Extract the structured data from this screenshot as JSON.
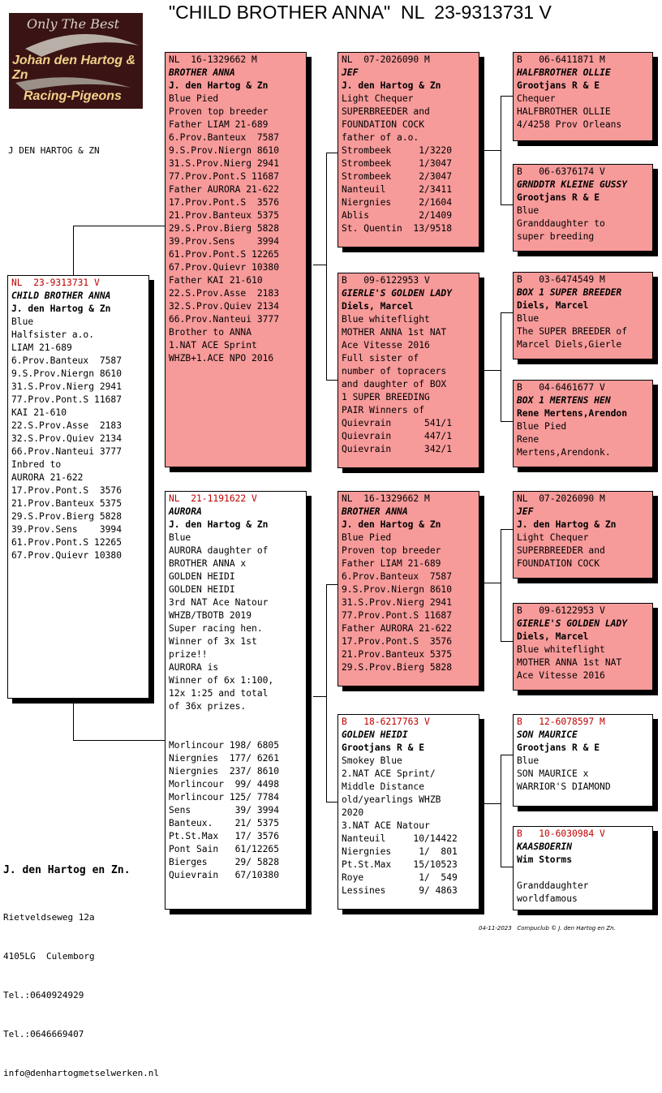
{
  "title": "\"CHILD BROTHER ANNA\"  NL  23-9313731 V",
  "logo": {
    "line1": "Only The Best",
    "line2": "Johan den Hartog & Zn",
    "line3": "Racing-Pigeons"
  },
  "owner_short": "J DEN HARTOG & ZN",
  "subject": {
    "header": "NL  23-9313731 V",
    "name": "CHILD BROTHER ANNA",
    "breeder": "J. den Hartog & Zn",
    "lines": [
      "Blue",
      "Halfsister a.o.",
      "LIAM 21-689",
      "6.Prov.Banteux  7587",
      "9.S.Prov.Niergn 8610",
      "31.S.Prov.Nierg 2941",
      "77.Prov.Pont.S 11687",
      "KAI 21-610",
      "22.S.Prov.Asse  2183",
      "32.S.Prov.Quiev 2134",
      "66.Prov.Nanteui 3777",
      "Inbred to",
      "AURORA 21-622",
      "17.Prov.Pont.S  3576",
      "21.Prov.Banteux 5375",
      "29.S.Prov.Bierg 5828",
      "39.Prov.Sens    3994",
      "61.Prov.Pont.S 12265",
      "67.Prov.Quievr 10380"
    ]
  },
  "father": {
    "header": "NL  16-1329662 M",
    "name": "BROTHER ANNA",
    "breeder": "J. den Hartog & Zn",
    "lines": [
      "Blue Pied",
      "Proven top breeder",
      "Father LIAM 21-689",
      "6.Prov.Banteux  7587",
      "9.S.Prov.Niergn 8610",
      "31.S.Prov.Nierg 2941",
      "77.Prov.Pont.S 11687",
      "Father AURORA 21-622",
      "17.Prov.Pont.S  3576",
      "21.Prov.Banteux 5375",
      "29.S.Prov.Bierg 5828",
      "39.Prov.Sens    3994",
      "61.Prov.Pont.S 12265",
      "67.Prov.Quievr 10380",
      "Father KAI 21-610",
      "22.S.Prov.Asse  2183",
      "32.S.Prov.Quiev 2134",
      "66.Prov.Nanteui 3777",
      "Brother to ANNA",
      "1.NAT ACE Sprint",
      "WHZB+1.ACE NPO 2016"
    ]
  },
  "mother": {
    "header": "NL  21-1191622 V",
    "name": "AURORA",
    "breeder": "J. den Hartog & Zn",
    "lines": [
      "Blue",
      "AURORA daughter of",
      "BROTHER ANNA x",
      "GOLDEN HEIDI",
      "GOLDEN HEIDI",
      "3rd NAT Ace Natour",
      "WHZB/TBOTB 2019",
      "Super racing hen.",
      "Winner of 3x 1st",
      "prize!!",
      "AURORA is",
      "Winner of 6x 1:100,",
      "12x 1:25 and total",
      "of 36x prizes.",
      "",
      "",
      "Morlincour 198/ 6805",
      "Niergnies  177/ 6261",
      "Niergnies  237/ 8610",
      "Morlincour  99/ 4498",
      "Morlincour 125/ 7784",
      "Sens        39/ 3994",
      "Banteux.    21/ 5375",
      "Pt.St.Max   17/ 3576",
      "Pont Sain   61/12265",
      "Bierges     29/ 5828",
      "Quievrain   67/10380"
    ]
  },
  "ff": {
    "header": "NL  07-2026090 M",
    "name": "JEF",
    "breeder": "J. den Hartog & Zn",
    "lines": [
      "Light Chequer",
      "SUPERBREEDER and",
      "FOUNDATION COCK",
      "father of a.o.",
      "Strombeek     1/3220",
      "Strombeek     1/3047",
      "Strombeek     2/3047",
      "Nanteuil      2/3411",
      "Niergnies     2/1604",
      "Ablis         2/1409",
      "St. Quentin  13/9518"
    ]
  },
  "fm": {
    "header": "B   09-6122953 V",
    "name": "GIERLE'S GOLDEN LADY",
    "breeder": "Diels, Marcel",
    "lines": [
      "Blue whiteflight",
      "MOTHER ANNA 1st NAT",
      "Ace Vitesse 2016",
      "Full sister of",
      "number of topracers",
      "and daughter of BOX",
      "1 SUPER BREEDING",
      "PAIR Winners of",
      "Quievrain      541/1",
      "Quievrain      447/1",
      "Quievrain      342/1"
    ]
  },
  "mf": {
    "header": "NL  16-1329662 M",
    "name": "BROTHER ANNA",
    "breeder": "J. den Hartog & Zn",
    "lines": [
      "Blue Pied",
      "Proven top breeder",
      "Father LIAM 21-689",
      "6.Prov.Banteux  7587",
      "9.S.Prov.Niergn 8610",
      "31.S.Prov.Nierg 2941",
      "77.Prov.Pont.S 11687",
      "Father AURORA 21-622",
      "17.Prov.Pont.S  3576",
      "21.Prov.Banteux 5375",
      "29.S.Prov.Bierg 5828"
    ]
  },
  "mm": {
    "header": "B   18-6217763 V",
    "name": "GOLDEN HEIDI",
    "breeder": "Grootjans R & E",
    "lines": [
      "Smokey Blue",
      "2.NAT ACE Sprint/",
      "Middle Distance",
      "old/yearlings WHZB",
      "2020",
      "3.NAT ACE Natour",
      "Nanteuil     10/14422",
      "Niergnies     1/  801",
      "Pt.St.Max    15/10523",
      "Roye          1/  549",
      "Lessines      9/ 4863"
    ]
  },
  "fff": {
    "header": "B   06-6411871 M",
    "name": "HALFBROTHER OLLIE",
    "breeder": "Grootjans R & E",
    "lines": [
      "Chequer",
      "HALFBROTHER OLLIE",
      "4/4258 Prov Orleans"
    ]
  },
  "ffm": {
    "header": "B   06-6376174 V",
    "name": "GRNDDTR KLEINE GUSSY",
    "breeder": "Grootjans R & E",
    "lines": [
      "Blue",
      "Granddaughter to",
      "super breeding"
    ]
  },
  "fmf": {
    "header": "B   03-6474549 M",
    "name": "BOX 1 SUPER BREEDER",
    "breeder": "Diels, Marcel",
    "lines": [
      "Blue",
      "The SUPER BREEDER of",
      "Marcel Diels,Gierle"
    ]
  },
  "fmm": {
    "header": "B   04-6461677 V",
    "name": "BOX 1 MERTENS HEN",
    "breeder": "Rene Mertens,Arendon",
    "lines": [
      "Blue Pied",
      "Rene",
      "Mertens,Arendonk."
    ]
  },
  "mff": {
    "header": "NL  07-2026090 M",
    "name": "JEF",
    "breeder": "J. den Hartog & Zn",
    "lines": [
      "Light Chequer",
      "SUPERBREEDER and",
      "FOUNDATION COCK"
    ]
  },
  "mfm": {
    "header": "B   09-6122953 V",
    "name": "GIERLE'S GOLDEN LADY",
    "breeder": "Diels, Marcel",
    "lines": [
      "Blue whiteflight",
      "MOTHER ANNA 1st NAT",
      "Ace Vitesse 2016"
    ]
  },
  "mmf": {
    "header": "B   12-6078597 M",
    "name": "SON MAURICE",
    "breeder": "Grootjans R & E",
    "lines": [
      "Blue",
      "SON MAURICE x",
      "WARRIOR'S DIAMOND"
    ]
  },
  "mmm": {
    "header": "B   10-6030984 V",
    "name": "KAASBOERIN",
    "breeder": "Wim Storms",
    "lines": [
      "",
      "Granddaughter",
      "worldfamous"
    ]
  },
  "footer": {
    "name": "J. den Hartog en Zn.",
    "lines": [
      "Rietveldseweg 12a",
      "4105LG  Culemborg",
      "Tel.:0640924929",
      "Tel.:0646669407",
      "info@denhartogmetselwerken.nl"
    ]
  },
  "stamp": "04-11-2023   Compuclub © J. den Hartog en Zn."
}
